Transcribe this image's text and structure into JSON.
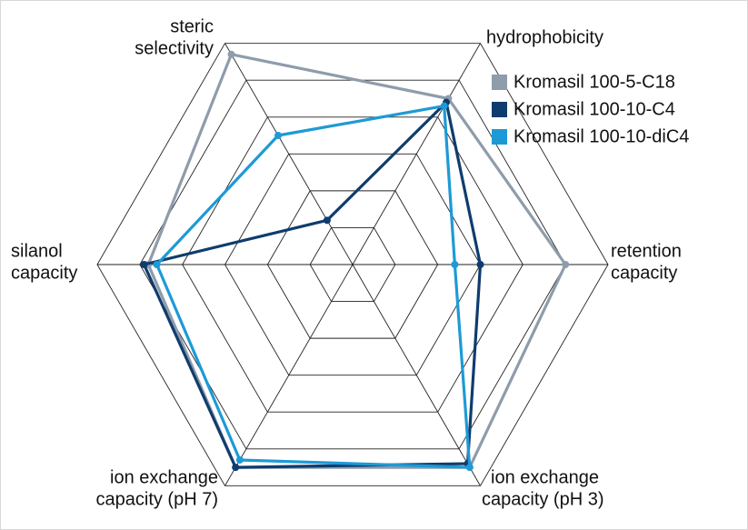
{
  "chart_data": {
    "type": "radar",
    "axes": [
      [
        "steric",
        "selectivity"
      ],
      [
        "hydrophobicity"
      ],
      [
        "retention",
        "capacity"
      ],
      [
        "ion exchange",
        "capacity (pH 3)"
      ],
      [
        "ion exchange",
        "capacity (pH 7)"
      ],
      [
        "silanol",
        "capacity"
      ]
    ],
    "rlim": [
      0,
      6
    ],
    "rticks": [
      1,
      2,
      3,
      4,
      5,
      6
    ],
    "series": [
      {
        "name": "Kromasil 100-5-C18",
        "color": "#8e9cab",
        "values": [
          5.7,
          4.5,
          5.0,
          5.5,
          5.5,
          4.8
        ]
      },
      {
        "name": "Kromasil 100-10-C4",
        "color": "#0f3c6e",
        "values": [
          1.2,
          4.4,
          3.0,
          5.4,
          5.5,
          4.9
        ]
      },
      {
        "name": "Kromasil 100-10-diC4",
        "color": "#1d9ad6",
        "values": [
          3.5,
          4.3,
          2.4,
          5.5,
          5.3,
          4.6
        ]
      }
    ]
  }
}
